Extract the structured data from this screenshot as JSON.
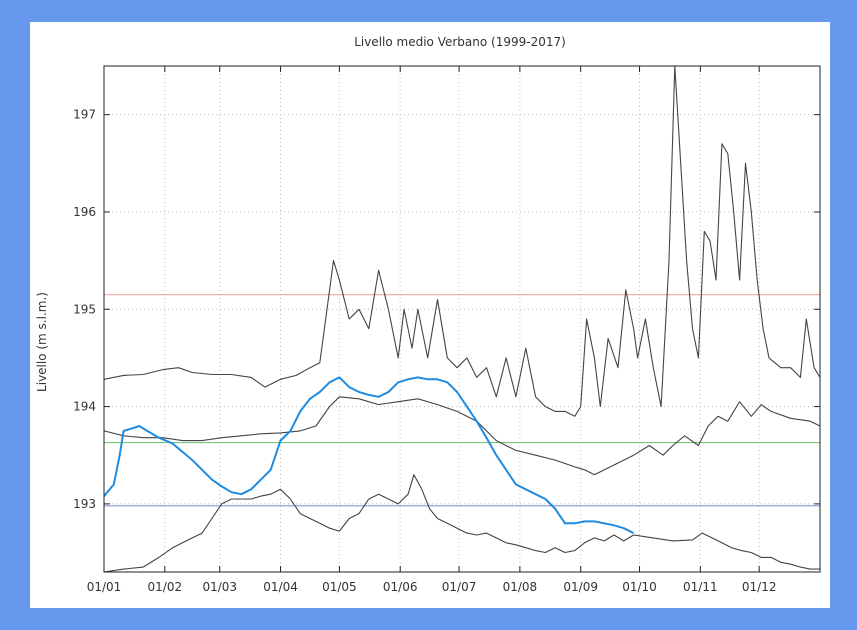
{
  "chart_data": {
    "type": "line",
    "title": "Livello medio Verbano (1999-2017)",
    "ylabel": "Livello (m s.l.m.)",
    "xlabel": "",
    "xlim": [
      0,
      365
    ],
    "ylim": [
      192.3,
      197.5
    ],
    "grid": true,
    "x_ticks": [
      {
        "label": "01/01",
        "day": 0
      },
      {
        "label": "01/02",
        "day": 31
      },
      {
        "label": "01/03",
        "day": 59
      },
      {
        "label": "01/04",
        "day": 90
      },
      {
        "label": "01/05",
        "day": 120
      },
      {
        "label": "01/06",
        "day": 151
      },
      {
        "label": "01/07",
        "day": 181
      },
      {
        "label": "01/08",
        "day": 212
      },
      {
        "label": "01/09",
        "day": 243
      },
      {
        "label": "01/10",
        "day": 273
      },
      {
        "label": "01/11",
        "day": 304
      },
      {
        "label": "01/12",
        "day": 334
      }
    ],
    "y_ticks": [
      {
        "label": "193",
        "value": 193
      },
      {
        "label": "194",
        "value": 194
      },
      {
        "label": "195",
        "value": 195
      },
      {
        "label": "196",
        "value": 196
      },
      {
        "label": "197",
        "value": 197
      }
    ],
    "reference_lines": [
      {
        "value": 195.15,
        "color": "#e8a8a0"
      },
      {
        "value": 193.63,
        "color": "#7cc47c"
      },
      {
        "value": 192.98,
        "color": "#8899dd"
      }
    ],
    "series": [
      {
        "color": "#444444",
        "points": [
          [
            0,
            194.28
          ],
          [
            10,
            194.32
          ],
          [
            20,
            194.33
          ],
          [
            30,
            194.38
          ],
          [
            38,
            194.4
          ],
          [
            45,
            194.35
          ],
          [
            55,
            194.33
          ],
          [
            65,
            194.33
          ],
          [
            75,
            194.3
          ],
          [
            82,
            194.2
          ],
          [
            90,
            194.28
          ],
          [
            98,
            194.32
          ],
          [
            105,
            194.4
          ],
          [
            110,
            194.45
          ],
          [
            113,
            194.9
          ],
          [
            117,
            195.5
          ],
          [
            120,
            195.3
          ],
          [
            125,
            194.9
          ],
          [
            130,
            195.0
          ],
          [
            135,
            194.8
          ],
          [
            140,
            195.4
          ],
          [
            145,
            195.0
          ],
          [
            150,
            194.5
          ],
          [
            153,
            195.0
          ],
          [
            157,
            194.6
          ],
          [
            160,
            195.0
          ],
          [
            165,
            194.5
          ],
          [
            170,
            195.1
          ],
          [
            175,
            194.5
          ],
          [
            180,
            194.4
          ],
          [
            185,
            194.5
          ],
          [
            190,
            194.3
          ],
          [
            195,
            194.4
          ],
          [
            200,
            194.1
          ],
          [
            205,
            194.5
          ],
          [
            210,
            194.1
          ],
          [
            215,
            194.6
          ],
          [
            220,
            194.1
          ],
          [
            225,
            194.0
          ],
          [
            230,
            193.95
          ],
          [
            235,
            193.95
          ],
          [
            240,
            193.9
          ],
          [
            243,
            194.0
          ],
          [
            246,
            194.9
          ],
          [
            250,
            194.5
          ],
          [
            253,
            194.0
          ],
          [
            257,
            194.7
          ],
          [
            262,
            194.4
          ],
          [
            266,
            195.2
          ],
          [
            270,
            194.8
          ],
          [
            272,
            194.5
          ],
          [
            276,
            194.9
          ],
          [
            280,
            194.4
          ],
          [
            284,
            194.0
          ],
          [
            288,
            195.5
          ],
          [
            291,
            197.5
          ],
          [
            294,
            196.5
          ],
          [
            297,
            195.5
          ],
          [
            300,
            194.8
          ],
          [
            303,
            194.5
          ],
          [
            306,
            195.8
          ],
          [
            309,
            195.7
          ],
          [
            312,
            195.3
          ],
          [
            315,
            196.7
          ],
          [
            318,
            196.6
          ],
          [
            321,
            196.0
          ],
          [
            324,
            195.3
          ],
          [
            327,
            196.5
          ],
          [
            330,
            196.0
          ],
          [
            333,
            195.3
          ],
          [
            336,
            194.8
          ],
          [
            339,
            194.5
          ],
          [
            345,
            194.4
          ],
          [
            350,
            194.4
          ],
          [
            355,
            194.3
          ],
          [
            358,
            194.9
          ],
          [
            362,
            194.4
          ],
          [
            365,
            194.3
          ]
        ]
      },
      {
        "color": "#444444",
        "points": [
          [
            0,
            193.75
          ],
          [
            10,
            193.7
          ],
          [
            20,
            193.68
          ],
          [
            30,
            193.68
          ],
          [
            40,
            193.65
          ],
          [
            50,
            193.65
          ],
          [
            60,
            193.68
          ],
          [
            70,
            193.7
          ],
          [
            80,
            193.72
          ],
          [
            90,
            193.73
          ],
          [
            100,
            193.75
          ],
          [
            108,
            193.8
          ],
          [
            115,
            194.0
          ],
          [
            120,
            194.1
          ],
          [
            130,
            194.08
          ],
          [
            140,
            194.02
          ],
          [
            150,
            194.05
          ],
          [
            160,
            194.08
          ],
          [
            170,
            194.02
          ],
          [
            180,
            193.95
          ],
          [
            190,
            193.85
          ],
          [
            200,
            193.65
          ],
          [
            210,
            193.55
          ],
          [
            220,
            193.5
          ],
          [
            230,
            193.45
          ],
          [
            240,
            193.38
          ],
          [
            245,
            193.35
          ],
          [
            250,
            193.3
          ],
          [
            260,
            193.4
          ],
          [
            270,
            193.5
          ],
          [
            278,
            193.6
          ],
          [
            285,
            193.5
          ],
          [
            290,
            193.6
          ],
          [
            296,
            193.7
          ],
          [
            303,
            193.6
          ],
          [
            308,
            193.8
          ],
          [
            313,
            193.9
          ],
          [
            318,
            193.85
          ],
          [
            324,
            194.05
          ],
          [
            330,
            193.9
          ],
          [
            335,
            194.02
          ],
          [
            340,
            193.95
          ],
          [
            350,
            193.88
          ],
          [
            360,
            193.85
          ],
          [
            365,
            193.8
          ]
        ]
      },
      {
        "color": "#444444",
        "points": [
          [
            0,
            192.3
          ],
          [
            10,
            192.33
          ],
          [
            20,
            192.35
          ],
          [
            28,
            192.45
          ],
          [
            35,
            192.55
          ],
          [
            40,
            192.6
          ],
          [
            45,
            192.65
          ],
          [
            50,
            192.7
          ],
          [
            55,
            192.85
          ],
          [
            60,
            193.0
          ],
          [
            65,
            193.05
          ],
          [
            70,
            193.05
          ],
          [
            75,
            193.05
          ],
          [
            80,
            193.08
          ],
          [
            85,
            193.1
          ],
          [
            90,
            193.15
          ],
          [
            95,
            193.05
          ],
          [
            100,
            192.9
          ],
          [
            105,
            192.85
          ],
          [
            110,
            192.8
          ],
          [
            115,
            192.75
          ],
          [
            120,
            192.72
          ],
          [
            125,
            192.85
          ],
          [
            130,
            192.9
          ],
          [
            135,
            193.05
          ],
          [
            140,
            193.1
          ],
          [
            145,
            193.05
          ],
          [
            150,
            193.0
          ],
          [
            155,
            193.1
          ],
          [
            158,
            193.3
          ],
          [
            162,
            193.15
          ],
          [
            166,
            192.95
          ],
          [
            170,
            192.85
          ],
          [
            175,
            192.8
          ],
          [
            180,
            192.75
          ],
          [
            185,
            192.7
          ],
          [
            190,
            192.68
          ],
          [
            195,
            192.7
          ],
          [
            200,
            192.65
          ],
          [
            205,
            192.6
          ],
          [
            210,
            192.58
          ],
          [
            215,
            192.55
          ],
          [
            220,
            192.52
          ],
          [
            225,
            192.5
          ],
          [
            230,
            192.55
          ],
          [
            235,
            192.5
          ],
          [
            240,
            192.52
          ],
          [
            245,
            192.6
          ],
          [
            250,
            192.65
          ],
          [
            255,
            192.62
          ],
          [
            260,
            192.68
          ],
          [
            265,
            192.62
          ],
          [
            270,
            192.68
          ],
          [
            280,
            192.65
          ],
          [
            290,
            192.62
          ],
          [
            300,
            192.63
          ],
          [
            305,
            192.7
          ],
          [
            310,
            192.65
          ],
          [
            315,
            192.6
          ],
          [
            320,
            192.55
          ],
          [
            325,
            192.52
          ],
          [
            330,
            192.5
          ],
          [
            335,
            192.45
          ],
          [
            340,
            192.45
          ],
          [
            345,
            192.4
          ],
          [
            350,
            192.38
          ],
          [
            355,
            192.35
          ],
          [
            360,
            192.33
          ],
          [
            365,
            192.33
          ]
        ]
      },
      {
        "color": "#1f8be0",
        "points": [
          [
            0,
            193.08
          ],
          [
            5,
            193.2
          ],
          [
            8,
            193.5
          ],
          [
            10,
            193.75
          ],
          [
            15,
            193.78
          ],
          [
            18,
            193.8
          ],
          [
            22,
            193.75
          ],
          [
            28,
            193.68
          ],
          [
            35,
            193.62
          ],
          [
            45,
            193.45
          ],
          [
            50,
            193.35
          ],
          [
            55,
            193.25
          ],
          [
            60,
            193.18
          ],
          [
            65,
            193.12
          ],
          [
            70,
            193.1
          ],
          [
            75,
            193.15
          ],
          [
            80,
            193.25
          ],
          [
            85,
            193.35
          ],
          [
            90,
            193.65
          ],
          [
            95,
            193.75
          ],
          [
            100,
            193.95
          ],
          [
            105,
            194.08
          ],
          [
            110,
            194.15
          ],
          [
            115,
            194.25
          ],
          [
            120,
            194.3
          ],
          [
            125,
            194.2
          ],
          [
            130,
            194.15
          ],
          [
            135,
            194.12
          ],
          [
            140,
            194.1
          ],
          [
            145,
            194.15
          ],
          [
            150,
            194.25
          ],
          [
            155,
            194.28
          ],
          [
            160,
            194.3
          ],
          [
            165,
            194.28
          ],
          [
            170,
            194.28
          ],
          [
            175,
            194.25
          ],
          [
            180,
            194.15
          ],
          [
            185,
            194.0
          ],
          [
            190,
            193.85
          ],
          [
            195,
            193.68
          ],
          [
            200,
            193.5
          ],
          [
            205,
            193.35
          ],
          [
            210,
            193.2
          ],
          [
            215,
            193.15
          ],
          [
            220,
            193.1
          ],
          [
            225,
            193.05
          ],
          [
            230,
            192.95
          ],
          [
            235,
            192.8
          ],
          [
            240,
            192.8
          ],
          [
            245,
            192.82
          ],
          [
            250,
            192.82
          ],
          [
            255,
            192.8
          ],
          [
            260,
            192.78
          ],
          [
            265,
            192.75
          ],
          [
            270,
            192.7
          ]
        ]
      }
    ]
  }
}
